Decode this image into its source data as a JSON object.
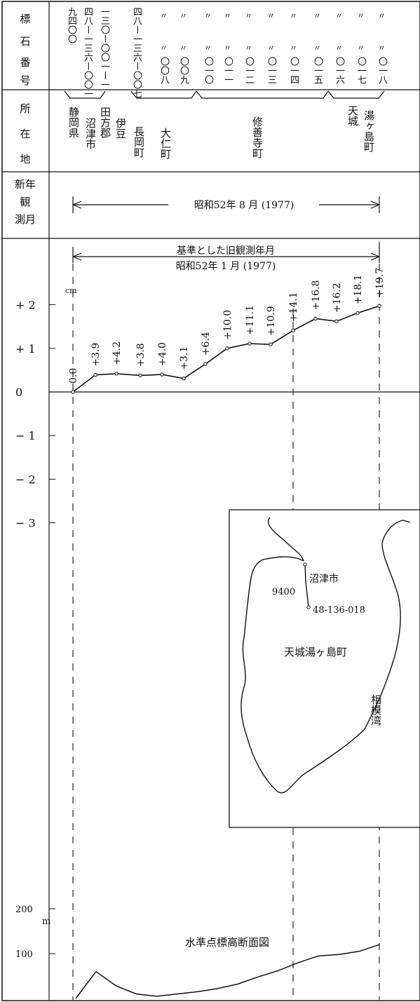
{
  "header_labels": {
    "bench_number": "標石番号",
    "location": "所在地",
    "new_observation": "新年観測月"
  },
  "bench_numbers": [
    "九四〇〇",
    "四八ー一三六ー〇〇一",
    "一三〇ー〇〇一ー一",
    "四八ー一三六ー〇〇七",
    "〇〇八",
    "〇〇九",
    "〇一〇",
    "〇一一",
    "〇一二",
    "〇一三",
    "〇一四",
    "〇一五",
    "〇一六",
    "〇一七",
    "〇一八"
  ],
  "ditto_mark": "〃",
  "locations": {
    "prefecture": "静岡県",
    "numazu": "沼津市",
    "tagata_county": "田方郡",
    "izu": "伊豆",
    "nagaoka": "長岡町",
    "ohito": "大仁町",
    "shuzenji": "修善寺町",
    "amagi_top": "天城",
    "amagi_yugashima": "湯ヶ島町"
  },
  "new_observation_date": "昭和52年 8 月 (1977)",
  "reference_date_label": "基準とした旧観測年月",
  "reference_date": "昭和52年 1 月 (1977)",
  "chart_data": [
    {
      "type": "line",
      "title": "",
      "ylabel": "cm",
      "y_ticks": [
        "+ 2",
        "+ 1",
        "0",
        "− 1",
        "− 2",
        "− 3"
      ],
      "ylim": [
        -3,
        2
      ],
      "x": [
        "九四〇〇",
        "四八ー一三六ー〇〇一",
        "一三〇ー〇〇一ー一",
        "四八ー一三六ー〇〇七",
        "〇〇八",
        "〇〇九",
        "〇一〇",
        "〇一一",
        "〇一二",
        "〇一三",
        "〇一四",
        "〇一五",
        "〇一六",
        "〇一七",
        "〇一八"
      ],
      "values": [
        0.0,
        0.39,
        0.42,
        0.38,
        0.4,
        0.31,
        0.64,
        1.0,
        1.11,
        1.09,
        1.41,
        1.68,
        1.62,
        1.81,
        1.97
      ],
      "data_labels": [
        "0.0",
        "+3.9",
        "+4.2",
        "+3.8",
        "+4.0",
        "+3.1",
        "+6.4",
        "+10.0",
        "+11.1",
        "+10.9",
        "+14.1",
        "+16.8",
        "+16.2",
        "+18.1",
        "+19.7"
      ]
    },
    {
      "type": "line",
      "title": "水準点標高断面図",
      "ylabel": "m",
      "y_ticks": [
        "200",
        "100"
      ],
      "ylim": [
        0,
        250
      ],
      "x_km": [
        0,
        2,
        4,
        6,
        8,
        10,
        12,
        14,
        16,
        18,
        20,
        22,
        24,
        26,
        28,
        30
      ],
      "values": [
        0,
        60,
        28,
        10,
        5,
        10,
        15,
        22,
        32,
        48,
        62,
        80,
        95,
        98,
        105,
        120
      ]
    }
  ],
  "inset_map": {
    "labels": {
      "numazu": "沼津市",
      "start_point": "9400",
      "end_point": "48-136-018",
      "yugashima": "天城湯ヶ島町",
      "bay": "相模湾"
    }
  }
}
